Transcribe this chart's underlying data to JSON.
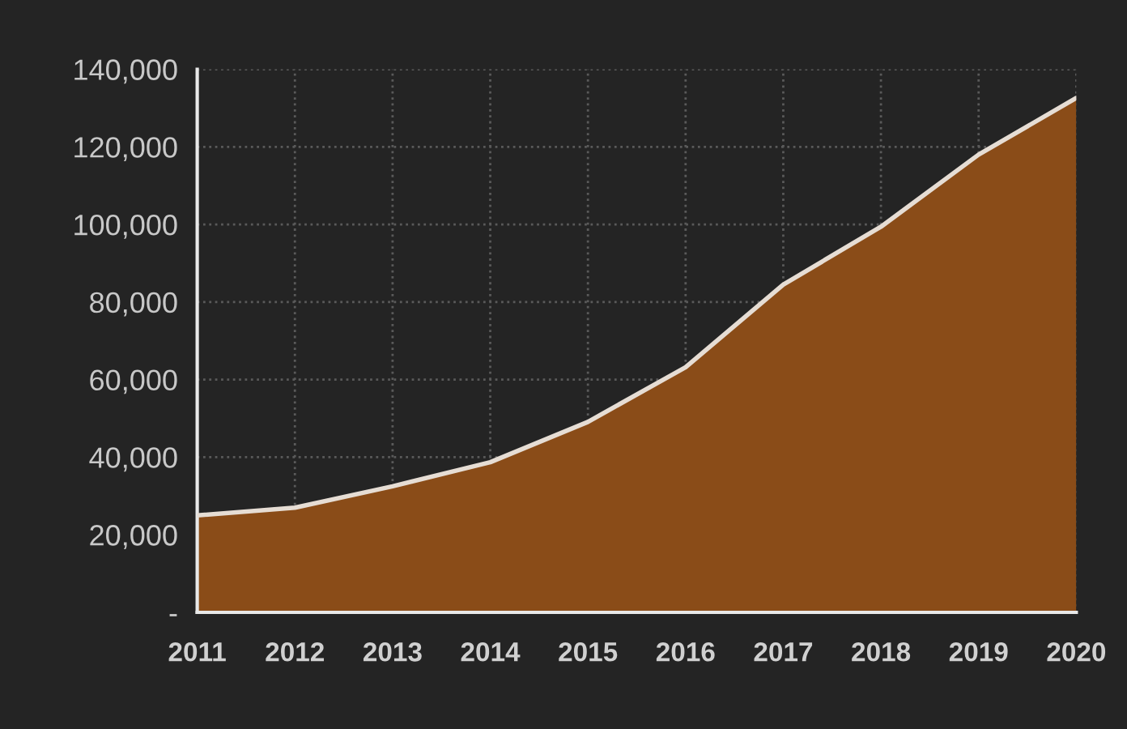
{
  "chart_data": {
    "type": "area",
    "x": [
      2011,
      2012,
      2013,
      2014,
      2015,
      2016,
      2017,
      2018,
      2019,
      2020
    ],
    "series": [
      {
        "color": "#8a4c18",
        "values": [
          25000,
          27000,
          32500,
          38700,
          49100,
          63200,
          84500,
          99400,
          118000,
          132600
        ]
      }
    ],
    "xlim": [
      2011,
      2020
    ],
    "xticks": [
      2011,
      2012,
      2013,
      2014,
      2015,
      2016,
      2017,
      2018,
      2019,
      2020
    ],
    "ylim": [
      0,
      140000
    ],
    "yticks": [
      {
        "value": 0,
        "label": "-"
      },
      {
        "value": 20000,
        "label": "20,000"
      },
      {
        "value": 40000,
        "label": "40,000"
      },
      {
        "value": 60000,
        "label": "60,000"
      },
      {
        "value": 80000,
        "label": "80,000"
      },
      {
        "value": 100000,
        "label": "100,000"
      },
      {
        "value": 120000,
        "label": "120,000"
      },
      {
        "value": 140000,
        "label": "140,000"
      }
    ],
    "grid": true,
    "legend": false,
    "line_style": "solid",
    "marker": "none"
  }
}
